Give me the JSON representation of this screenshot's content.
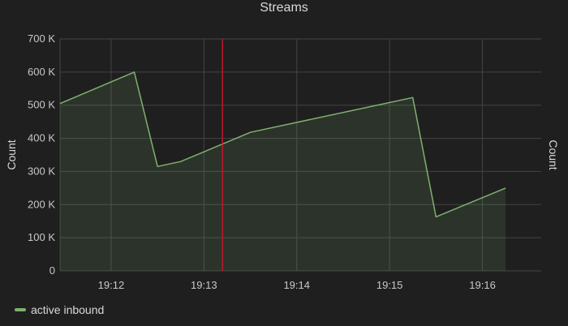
{
  "panel": {
    "title": "Streams"
  },
  "colors": {
    "background": "#1f1f20",
    "grid": "#444446",
    "series": "#7eb26d",
    "series_fill": "rgba(126,178,109,0.14)",
    "annotation": "#c4162a"
  },
  "chart_data": {
    "type": "area",
    "title": "Streams",
    "ylabel": "Count",
    "ylabel_right": "Count",
    "xlabel": "",
    "ylim": [
      0,
      700000
    ],
    "yticks": [
      0,
      100000,
      200000,
      300000,
      400000,
      500000,
      600000,
      700000
    ],
    "ytick_labels": [
      "0",
      "100 K",
      "200 K",
      "300 K",
      "400 K",
      "500 K",
      "600 K",
      "700 K"
    ],
    "xlim": [
      "19:11:27",
      "19:16:38"
    ],
    "xticks": [
      "19:12",
      "19:13",
      "19:14",
      "19:15",
      "19:16"
    ],
    "grid": true,
    "legend_position": "bottom-left",
    "annotation_time": "19:13:12",
    "series": [
      {
        "name": "active inbound",
        "x": [
          "19:11:27",
          "19:12:15",
          "19:12:30",
          "19:12:45",
          "19:13:30",
          "19:15:15",
          "19:15:30",
          "19:16:15"
        ],
        "values": [
          505000,
          600000,
          315000,
          330000,
          418000,
          523000,
          163000,
          250000
        ]
      }
    ]
  }
}
